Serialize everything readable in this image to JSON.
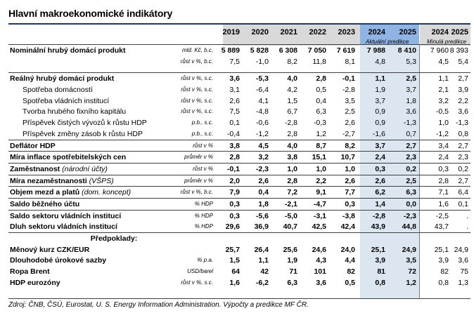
{
  "title": "Hlavní makroekonomické indikátory",
  "header": {
    "years": [
      "2019",
      "2020",
      "2021",
      "2022",
      "2023",
      "2024",
      "2025",
      "2024",
      "2025"
    ],
    "current_forecast_label": "Aktuální predikce",
    "previous_forecast_label": "Minulá predikce"
  },
  "rows": [
    {
      "label": "Nominální hrubý domácí produkt",
      "unit": "mld. Kč, b.c.",
      "bold": true,
      "sep": true,
      "values": [
        "5 889",
        "5 828",
        "6 308",
        "7 050",
        "7 619",
        "7 988",
        "8 410",
        "7 960",
        "8 393"
      ]
    },
    {
      "label": "",
      "unit": "růst v %, b.c.",
      "bold": false,
      "values": [
        "7,5",
        "-1,0",
        "8,2",
        "11,8",
        "8,1",
        "4,8",
        "5,3",
        "4,5",
        "5,4"
      ]
    },
    {
      "gap": true
    },
    {
      "label": "Reálný hrubý domácí produkt",
      "unit": "růst v %, s.c.",
      "bold": true,
      "sep": true,
      "values": [
        "3,6",
        "-5,3",
        "4,0",
        "2,8",
        "-0,1",
        "1,1",
        "2,5",
        "1,1",
        "2,7"
      ]
    },
    {
      "label": "Spotřeba domácností",
      "unit": "růst v %, s.c.",
      "indent": true,
      "values": [
        "3,1",
        "-6,4",
        "4,2",
        "0,5",
        "-2,8",
        "1,9",
        "3,7",
        "2,1",
        "3,9"
      ]
    },
    {
      "label": "Spotřeba vládních institucí",
      "unit": "růst v %, s.c.",
      "indent": true,
      "values": [
        "2,6",
        "4,1",
        "1,5",
        "0,4",
        "3,5",
        "3,7",
        "1,8",
        "3,2",
        "2,2"
      ]
    },
    {
      "label": "Tvorba hrubého fixního kapitálu",
      "unit": "růst v %, s.c.",
      "indent": true,
      "values": [
        "7,5",
        "-4,8",
        "6,7",
        "6,3",
        "2,5",
        "0,9",
        "3,6",
        "-0,5",
        "3,6"
      ]
    },
    {
      "label": "Příspěvek čistých vývozů k růstu HDP",
      "unit": "p.b., s.c.",
      "indent": true,
      "values": [
        "0,1",
        "-0,6",
        "-2,8",
        "-0,3",
        "2,6",
        "0,9",
        "-1,3",
        "1,0",
        "-1,3"
      ]
    },
    {
      "label": "Příspěvek změny zásob k růstu HDP",
      "unit": "p.b., s.c.",
      "indent": true,
      "values": [
        "-0,4",
        "-1,2",
        "2,8",
        "1,2",
        "-2,7",
        "-1,6",
        "0,7",
        "-1,2",
        "0,8"
      ]
    },
    {
      "label": "Deflátor HDP",
      "unit": "růst v %",
      "bold": true,
      "sep": true,
      "values": [
        "3,8",
        "4,5",
        "4,0",
        "8,7",
        "8,2",
        "3,7",
        "2,7",
        "3,4",
        "2,7"
      ]
    },
    {
      "label": "Míra inflace spotřebitelských cen",
      "unit": "průměr v %",
      "bold": true,
      "sep": true,
      "values": [
        "2,8",
        "3,2",
        "3,8",
        "15,1",
        "10,7",
        "2,4",
        "2,3",
        "2,4",
        "2,3"
      ]
    },
    {
      "label": "Zaměstnanost",
      "label_extra": " (národní účty)",
      "unit": "růst v %",
      "bold": true,
      "sep": true,
      "values": [
        "-0,1",
        "-2,3",
        "1,0",
        "1,0",
        "1,0",
        "0,3",
        "0,2",
        "0,3",
        "0,2"
      ]
    },
    {
      "label": "Míra nezaměstnanosti",
      "label_extra": " (VŠPS)",
      "unit": "průměr v %",
      "bold": true,
      "sep": true,
      "values": [
        "2,0",
        "2,6",
        "2,8",
        "2,2",
        "2,6",
        "2,6",
        "2,5",
        "2,8",
        "2,7"
      ]
    },
    {
      "label": "Objem mezd a platů",
      "label_extra": " (dom. koncept)",
      "unit": "růst v %, b.c.",
      "bold": true,
      "sep": true,
      "values": [
        "7,9",
        "0,4",
        "7,2",
        "9,1",
        "7,7",
        "6,2",
        "6,3",
        "7,1",
        "6,4"
      ]
    },
    {
      "label": "Saldo běžného účtu",
      "unit": "% HDP",
      "bold": true,
      "sep": true,
      "values": [
        "0,3",
        "1,8",
        "-2,1",
        "-4,7",
        "0,3",
        "1,4",
        "0,0",
        "1,6",
        "0,1"
      ]
    },
    {
      "label": "Saldo sektoru vládních institucí",
      "unit": "% HDP",
      "bold": true,
      "sep": true,
      "values": [
        "0,3",
        "-5,6",
        "-5,0",
        "-3,1",
        "-3,8",
        "-2,8",
        "-2,3",
        "-2,5",
        "."
      ]
    },
    {
      "label": "Dluh sektoru vládních institucí",
      "unit": "% HDP",
      "bold": true,
      "values": [
        "29,6",
        "36,9",
        "40,7",
        "42,5",
        "42,4",
        "43,9",
        "44,8",
        "43,7",
        "."
      ]
    },
    {
      "section": "Předpoklady:",
      "sep": true
    },
    {
      "label": "Měnový kurz CZK/EUR",
      "unit": "",
      "bold": true,
      "values": [
        "25,7",
        "26,4",
        "25,6",
        "24,6",
        "24,0",
        "25,1",
        "24,9",
        "25,1",
        "24,9"
      ]
    },
    {
      "label": "Dlouhodobé úrokové sazby",
      "unit": "% p.a.",
      "bold": true,
      "values": [
        "1,5",
        "1,1",
        "1,9",
        "4,3",
        "4,4",
        "3,9",
        "3,5",
        "3,9",
        "3,6"
      ]
    },
    {
      "label": "Ropa Brent",
      "unit": "USD/barel",
      "bold": true,
      "values": [
        "64",
        "42",
        "71",
        "101",
        "82",
        "81",
        "72",
        "82",
        "75"
      ]
    },
    {
      "label": "HDP eurozóny",
      "unit": "růst v %, s.c.",
      "bold": true,
      "values": [
        "1,6",
        "-6,2",
        "6,3",
        "3,6",
        "0,5",
        "0,8",
        "1,2",
        "0,8",
        "1,3"
      ]
    }
  ],
  "source": "Zdroj: ČNB, ČSÚ, Eurostat, U. S. Energy Information Administration. Výpočty a predikce MF ČR."
}
